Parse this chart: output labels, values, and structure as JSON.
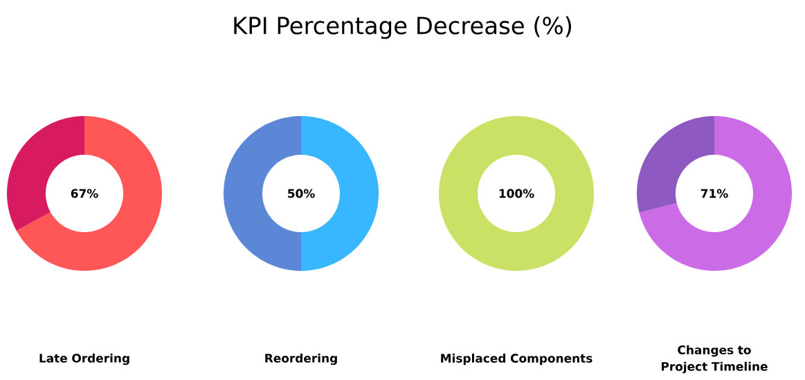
{
  "chart_data": [
    {
      "type": "donut",
      "title": "KPI Percentage Decrease (%)",
      "xlabel": "Late Ordering",
      "categories": [
        null,
        null
      ],
      "values": [
        67,
        33
      ],
      "colors": [
        "#ff5757",
        "#d81b60"
      ],
      "value_labels": [
        "67%",
        null
      ]
    },
    {
      "type": "donut",
      "xlabel": "Reordering",
      "categories": [
        null,
        null
      ],
      "values": [
        50,
        50
      ],
      "colors": [
        "#38b6ff",
        "#5b87d6"
      ],
      "value_labels": [
        "50%",
        null
      ]
    },
    {
      "type": "donut",
      "xlabel": "Misplaced Components",
      "categories": [
        null
      ],
      "values": [
        100
      ],
      "colors": [
        "#c9e265"
      ],
      "value_labels": [
        "100%"
      ]
    },
    {
      "type": "donut",
      "xlabel": "Changes to Project Timeline",
      "categories": [
        null,
        null
      ],
      "values": [
        71,
        29
      ],
      "colors": [
        "#cb6ce6",
        "#8f59c2"
      ],
      "value_labels": [
        "71%",
        null
      ]
    }
  ]
}
